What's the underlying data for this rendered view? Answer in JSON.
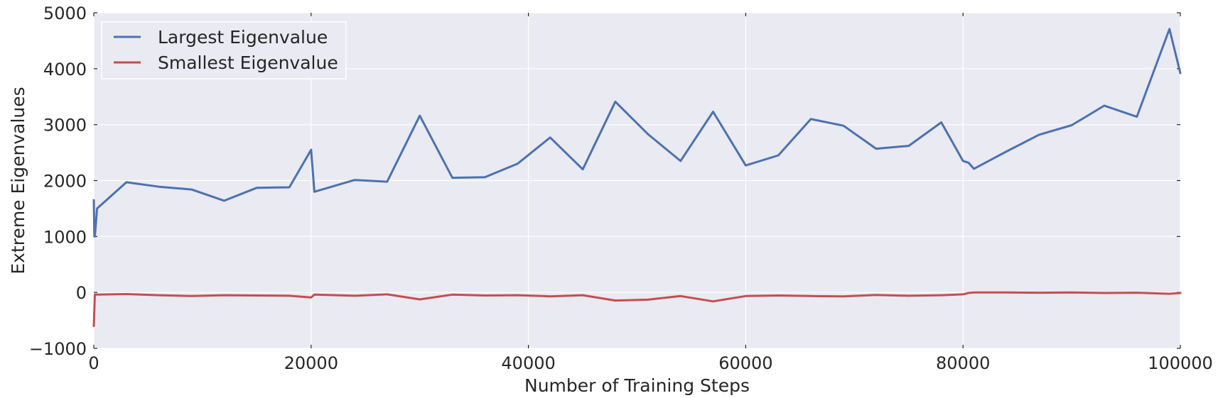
{
  "chart_data": {
    "type": "line",
    "xlabel": "Number of Training Steps",
    "ylabel": "Extreme Eigenvalues",
    "xlim": [
      0,
      100000
    ],
    "ylim": [
      -1000,
      5000
    ],
    "xticks": [
      0,
      20000,
      40000,
      60000,
      80000,
      100000
    ],
    "xtick_labels": [
      "0",
      "20000",
      "40000",
      "60000",
      "80000",
      "100000"
    ],
    "yticks": [
      -1000,
      0,
      1000,
      2000,
      3000,
      4000,
      5000
    ],
    "ytick_labels": [
      "−1000",
      "0",
      "1000",
      "2000",
      "3000",
      "4000",
      "5000"
    ],
    "grid": true,
    "legend_position": "top-left",
    "series": [
      {
        "name": "Largest Eigenvalue",
        "color": "#4c72b0",
        "x": [
          0,
          50,
          100,
          300,
          3000,
          6000,
          9000,
          12000,
          15000,
          18000,
          20000,
          20300,
          24000,
          27000,
          30000,
          33000,
          36000,
          39000,
          42000,
          45000,
          48000,
          51000,
          54000,
          57000,
          60000,
          63000,
          66000,
          69000,
          72000,
          75000,
          78000,
          80000,
          80500,
          81000,
          84000,
          87000,
          90000,
          93000,
          96000,
          99000,
          100000
        ],
        "y": [
          1650,
          1000,
          1000,
          1500,
          1970,
          1890,
          1840,
          1640,
          1870,
          1880,
          2550,
          1800,
          2010,
          1980,
          3160,
          2050,
          2060,
          2300,
          2770,
          2200,
          3410,
          2830,
          2350,
          3230,
          2270,
          2450,
          3100,
          2980,
          2570,
          2620,
          3040,
          2350,
          2320,
          2210,
          2520,
          2820,
          2990,
          3340,
          3140,
          4710,
          3920
        ]
      },
      {
        "name": "Smallest Eigenvalue",
        "color": "#c44e52",
        "x": [
          0,
          100,
          300,
          3000,
          6000,
          9000,
          12000,
          15000,
          18000,
          20000,
          20300,
          24000,
          27000,
          30000,
          33000,
          36000,
          39000,
          42000,
          45000,
          48000,
          51000,
          54000,
          57000,
          60000,
          63000,
          66000,
          69000,
          72000,
          75000,
          78000,
          80000,
          80500,
          81000,
          84000,
          87000,
          90000,
          93000,
          96000,
          99000,
          100000
        ],
        "y": [
          -600,
          -40,
          -40,
          -30,
          -50,
          -65,
          -50,
          -55,
          -60,
          -90,
          -40,
          -60,
          -35,
          -125,
          -40,
          -55,
          -50,
          -70,
          -50,
          -145,
          -130,
          -65,
          -160,
          -65,
          -55,
          -65,
          -70,
          -45,
          -60,
          -50,
          -35,
          -10,
          0,
          0,
          -5,
          0,
          -10,
          -5,
          -25,
          -10
        ]
      }
    ]
  }
}
